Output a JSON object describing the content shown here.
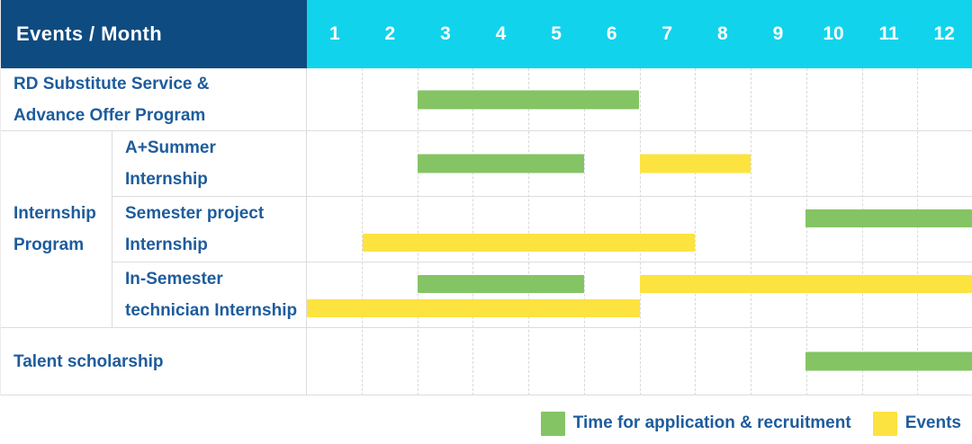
{
  "header": {
    "title": "Events / Month",
    "months": [
      "1",
      "2",
      "3",
      "4",
      "5",
      "6",
      "7",
      "8",
      "9",
      "10",
      "11",
      "12"
    ]
  },
  "colors": {
    "navy": "#0E4B80",
    "cyan": "#12D3EC",
    "green": "#84C464",
    "yellow": "#FDE33F",
    "text": "#1E5C9C",
    "grid": "#DCDCDC"
  },
  "legend": {
    "items": [
      {
        "key": "green",
        "label": "Time for application & recruitment"
      },
      {
        "key": "yellow",
        "label": "Events"
      }
    ]
  },
  "chart_data": {
    "type": "gantt",
    "title": "Events / Month",
    "time_axis": {
      "unit": "month",
      "ticks": [
        1,
        2,
        3,
        4,
        5,
        6,
        7,
        8,
        9,
        10,
        11,
        12
      ]
    },
    "legend": [
      {
        "color": "green",
        "hex": "#84C464",
        "label": "Time for application & recruitment"
      },
      {
        "color": "yellow",
        "hex": "#FDE33F",
        "label": "Events"
      }
    ],
    "group": {
      "label": "Internship Program",
      "label_lines": [
        "Internship",
        "Program"
      ],
      "row_ids": [
        "a-plus-summer-internship",
        "semester-project-internship",
        "in-semester-technician-internship"
      ]
    },
    "rows": [
      {
        "id": "rd-substitute-service",
        "label": "RD Substitute Service & Advance Offer Program",
        "label_lines": [
          "RD Substitute Service &",
          "Advance Offer Program"
        ],
        "group": null,
        "bars": [
          {
            "series": "Time for application & recruitment",
            "color": "green",
            "start_month": 3,
            "end_month": 6,
            "line": 0
          }
        ]
      },
      {
        "id": "a-plus-summer-internship",
        "label": "A+Summer Internship",
        "label_lines": [
          "A+Summer",
          "Internship"
        ],
        "group": "Internship Program",
        "bars": [
          {
            "series": "Time for application & recruitment",
            "color": "green",
            "start_month": 3,
            "end_month": 5,
            "line": 0
          },
          {
            "series": "Events",
            "color": "yellow",
            "start_month": 7,
            "end_month": 8,
            "line": 0
          }
        ]
      },
      {
        "id": "semester-project-internship",
        "label": "Semester project Internship",
        "label_lines": [
          "Semester project",
          "Internship"
        ],
        "group": "Internship Program",
        "bars": [
          {
            "series": "Time for application & recruitment",
            "color": "green",
            "start_month": 10,
            "end_month": 12,
            "line": 0
          },
          {
            "series": "Events",
            "color": "yellow",
            "start_month": 2,
            "end_month": 7,
            "line": 1
          }
        ]
      },
      {
        "id": "in-semester-technician-internship",
        "label": "In-Semester technician Internship",
        "label_lines": [
          "In-Semester",
          "technician Internship"
        ],
        "group": "Internship Program",
        "bars": [
          {
            "series": "Time for application & recruitment",
            "color": "green",
            "start_month": 3,
            "end_month": 5,
            "line": 0
          },
          {
            "series": "Events",
            "color": "yellow",
            "start_month": 7,
            "end_month": 12,
            "line": 0
          },
          {
            "series": "Events",
            "color": "yellow",
            "start_month": 1,
            "end_month": 6,
            "line": 1
          }
        ]
      },
      {
        "id": "talent-scholarship",
        "label": "Talent scholarship",
        "label_lines": [
          "Talent scholarship"
        ],
        "group": null,
        "bars": [
          {
            "series": "Time for application & recruitment",
            "color": "green",
            "start_month": 10,
            "end_month": 12,
            "line": 0
          }
        ]
      }
    ]
  }
}
